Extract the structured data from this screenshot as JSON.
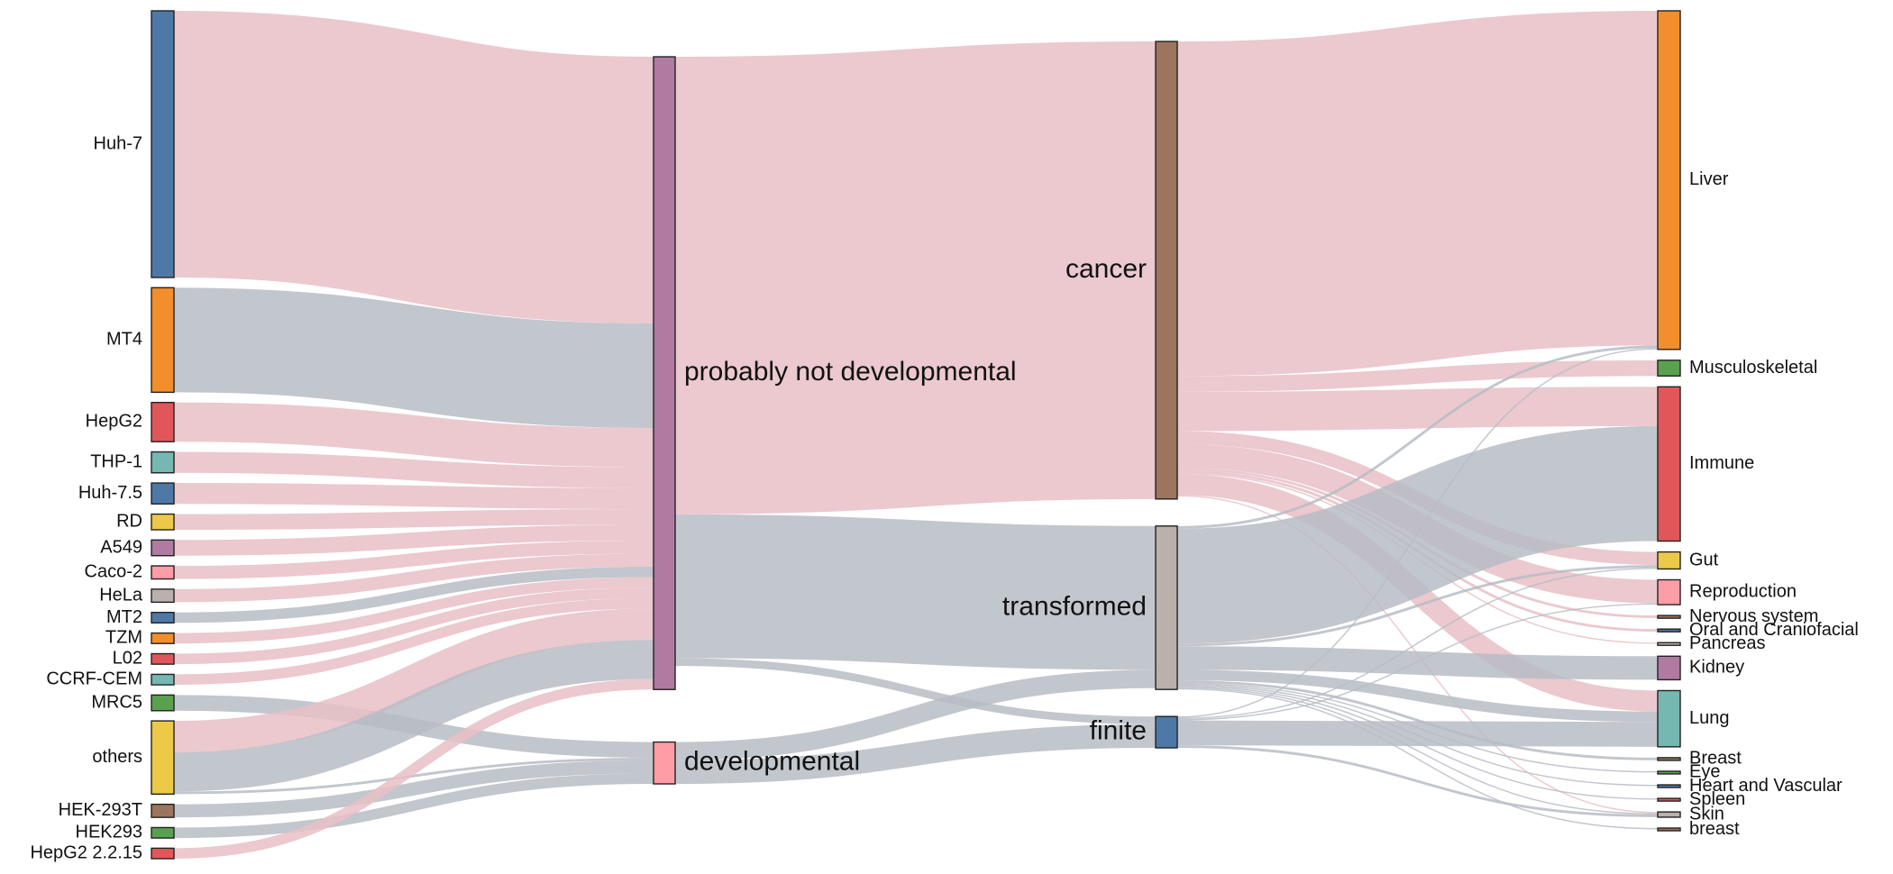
{
  "chart_data": {
    "type": "sankey",
    "title": "",
    "colors": {
      "link_cancer": "#e8bfc5",
      "link_other": "#b7bcc4",
      "link_opacity": 0.85
    },
    "columns": {
      "cell_lines": [
        {
          "name": "Huh-7",
          "color": "#4e79a7"
        },
        {
          "name": "MT4",
          "color": "#f28e2b"
        },
        {
          "name": "HepG2",
          "color": "#e15759"
        },
        {
          "name": "THP-1",
          "color": "#76b7b2"
        },
        {
          "name": "Huh-7.5",
          "color": "#4e79a7"
        },
        {
          "name": "RD",
          "color": "#edc948"
        },
        {
          "name": "A549",
          "color": "#b07aa1"
        },
        {
          "name": "Caco-2",
          "color": "#ff9da7"
        },
        {
          "name": "HeLa",
          "color": "#bab0ac"
        },
        {
          "name": "MT2",
          "color": "#4e79a7"
        },
        {
          "name": "TZM",
          "color": "#f28e2b"
        },
        {
          "name": "L02",
          "color": "#e15759"
        },
        {
          "name": "CCRF-CEM",
          "color": "#76b7b2"
        },
        {
          "name": "MRC5",
          "color": "#59a14f"
        },
        {
          "name": "others",
          "color": "#edc948"
        },
        {
          "name": "HEK-293T",
          "color": "#9c755f"
        },
        {
          "name": "HEK293",
          "color": "#59a14f"
        },
        {
          "name": "HepG2 2.2.15",
          "color": "#e15759"
        }
      ],
      "developmental": [
        {
          "name": "probably not developmental",
          "color": "#b07aa1"
        },
        {
          "name": "developmental",
          "color": "#ff9da7"
        }
      ],
      "cell_type": [
        {
          "name": "cancer",
          "color": "#9c755f"
        },
        {
          "name": "transformed",
          "color": "#bab0ac"
        },
        {
          "name": "finite",
          "color": "#4e79a7"
        }
      ],
      "tissues": [
        {
          "name": "Liver",
          "color": "#f28e2b"
        },
        {
          "name": "Musculoskeletal",
          "color": "#59a14f"
        },
        {
          "name": "Immune",
          "color": "#e15759"
        },
        {
          "name": "Gut",
          "color": "#edc948"
        },
        {
          "name": "Reproduction",
          "color": "#ff9da7"
        },
        {
          "name": "Nervous system",
          "color": "#9c755f"
        },
        {
          "name": "Oral and Craniofacial",
          "color": "#4e79a7"
        },
        {
          "name": "Pancreas",
          "color": "#bab0ac"
        },
        {
          "name": "Kidney",
          "color": "#b07aa1"
        },
        {
          "name": "Lung",
          "color": "#76b7b2"
        },
        {
          "name": "Breast",
          "color": "#9c755f"
        },
        {
          "name": "Eye",
          "color": "#59a14f"
        },
        {
          "name": "Heart and Vascular",
          "color": "#4e79a7"
        },
        {
          "name": "Spleen",
          "color": "#e15759"
        },
        {
          "name": "Skin",
          "color": "#bab0ac"
        },
        {
          "name": "breast",
          "color": "#9c755f"
        }
      ]
    },
    "flows": [
      {
        "source": "Huh-7",
        "target": "probably not developmental",
        "value": 102,
        "group": "cancer"
      },
      {
        "source": "MT4",
        "target": "probably not developmental",
        "value": 40,
        "group": "other"
      },
      {
        "source": "HepG2",
        "target": "probably not developmental",
        "value": 15,
        "group": "cancer"
      },
      {
        "source": "THP-1",
        "target": "probably not developmental",
        "value": 8,
        "group": "cancer"
      },
      {
        "source": "Huh-7.5",
        "target": "probably not developmental",
        "value": 8,
        "group": "cancer"
      },
      {
        "source": "RD",
        "target": "probably not developmental",
        "value": 6,
        "group": "cancer"
      },
      {
        "source": "A549",
        "target": "probably not developmental",
        "value": 6,
        "group": "cancer"
      },
      {
        "source": "Caco-2",
        "target": "probably not developmental",
        "value": 5,
        "group": "cancer"
      },
      {
        "source": "HeLa",
        "target": "probably not developmental",
        "value": 5,
        "group": "cancer"
      },
      {
        "source": "MT2",
        "target": "probably not developmental",
        "value": 4,
        "group": "other"
      },
      {
        "source": "TZM",
        "target": "probably not developmental",
        "value": 4,
        "group": "cancer"
      },
      {
        "source": "L02",
        "target": "probably not developmental",
        "value": 4,
        "group": "cancer"
      },
      {
        "source": "CCRF-CEM",
        "target": "probably not developmental",
        "value": 4,
        "group": "cancer"
      },
      {
        "source": "MRC5",
        "target": "developmental",
        "value": 6,
        "group": "other"
      },
      {
        "source": "others",
        "target": "probably not developmental",
        "value": 12,
        "group": "cancer"
      },
      {
        "source": "others",
        "target": "probably not developmental",
        "value": 15,
        "group": "other"
      },
      {
        "source": "others",
        "target": "developmental",
        "value": 1,
        "group": "other"
      },
      {
        "source": "HEK-293T",
        "target": "developmental",
        "value": 5,
        "group": "other"
      },
      {
        "source": "HEK293",
        "target": "developmental",
        "value": 4,
        "group": "other"
      },
      {
        "source": "HepG2 2.2.15",
        "target": "probably not developmental",
        "value": 4,
        "group": "cancer"
      },
      {
        "source": "probably not developmental",
        "target": "cancer",
        "value": 175,
        "group": "cancer"
      },
      {
        "source": "probably not developmental",
        "target": "transformed",
        "value": 55,
        "group": "other"
      },
      {
        "source": "probably not developmental",
        "target": "finite",
        "value": 3,
        "group": "other"
      },
      {
        "source": "developmental",
        "target": "transformed",
        "value": 7,
        "group": "other"
      },
      {
        "source": "developmental",
        "target": "finite",
        "value": 9,
        "group": "other"
      },
      {
        "source": "cancer",
        "target": "Liver",
        "value": 128,
        "group": "cancer"
      },
      {
        "source": "cancer",
        "target": "Musculoskeletal",
        "value": 6,
        "group": "cancer"
      },
      {
        "source": "cancer",
        "target": "Immune",
        "value": 15,
        "group": "cancer"
      },
      {
        "source": "cancer",
        "target": "Gut",
        "value": 5,
        "group": "cancer"
      },
      {
        "source": "cancer",
        "target": "Reproduction",
        "value": 9,
        "group": "cancer"
      },
      {
        "source": "cancer",
        "target": "Nervous system",
        "value": 1,
        "group": "cancer"
      },
      {
        "source": "cancer",
        "target": "Oral and Craniofacial",
        "value": 1,
        "group": "cancer"
      },
      {
        "source": "cancer",
        "target": "Pancreas",
        "value": 0.5,
        "group": "cancer"
      },
      {
        "source": "cancer",
        "target": "Lung",
        "value": 8,
        "group": "cancer"
      },
      {
        "source": "cancer",
        "target": "Skin",
        "value": 0.5,
        "group": "cancer"
      },
      {
        "source": "transformed",
        "target": "Liver",
        "value": 1,
        "group": "other"
      },
      {
        "source": "transformed",
        "target": "Immune",
        "value": 44,
        "group": "other"
      },
      {
        "source": "transformed",
        "target": "Gut",
        "value": 1,
        "group": "other"
      },
      {
        "source": "transformed",
        "target": "Kidney",
        "value": 9,
        "group": "other"
      },
      {
        "source": "transformed",
        "target": "Lung",
        "value": 4,
        "group": "other"
      },
      {
        "source": "transformed",
        "target": "Breast",
        "value": 1,
        "group": "other"
      },
      {
        "source": "transformed",
        "target": "Eye",
        "value": 0.5,
        "group": "other"
      },
      {
        "source": "transformed",
        "target": "Heart and Vascular",
        "value": 0.5,
        "group": "other"
      },
      {
        "source": "transformed",
        "target": "Spleen",
        "value": 0.5,
        "group": "other"
      },
      {
        "source": "transformed",
        "target": "Skin",
        "value": 0.5,
        "group": "other"
      },
      {
        "source": "transformed",
        "target": "breast",
        "value": 0.5,
        "group": "other"
      },
      {
        "source": "finite",
        "target": "Liver",
        "value": 0.5,
        "group": "other"
      },
      {
        "source": "finite",
        "target": "Reproduction",
        "value": 0.5,
        "group": "other"
      },
      {
        "source": "finite",
        "target": "Gut",
        "value": 0.5,
        "group": "other"
      },
      {
        "source": "finite",
        "target": "Lung",
        "value": 9.5,
        "group": "other"
      },
      {
        "source": "finite",
        "target": "Skin",
        "value": 1,
        "group": "other"
      }
    ]
  }
}
